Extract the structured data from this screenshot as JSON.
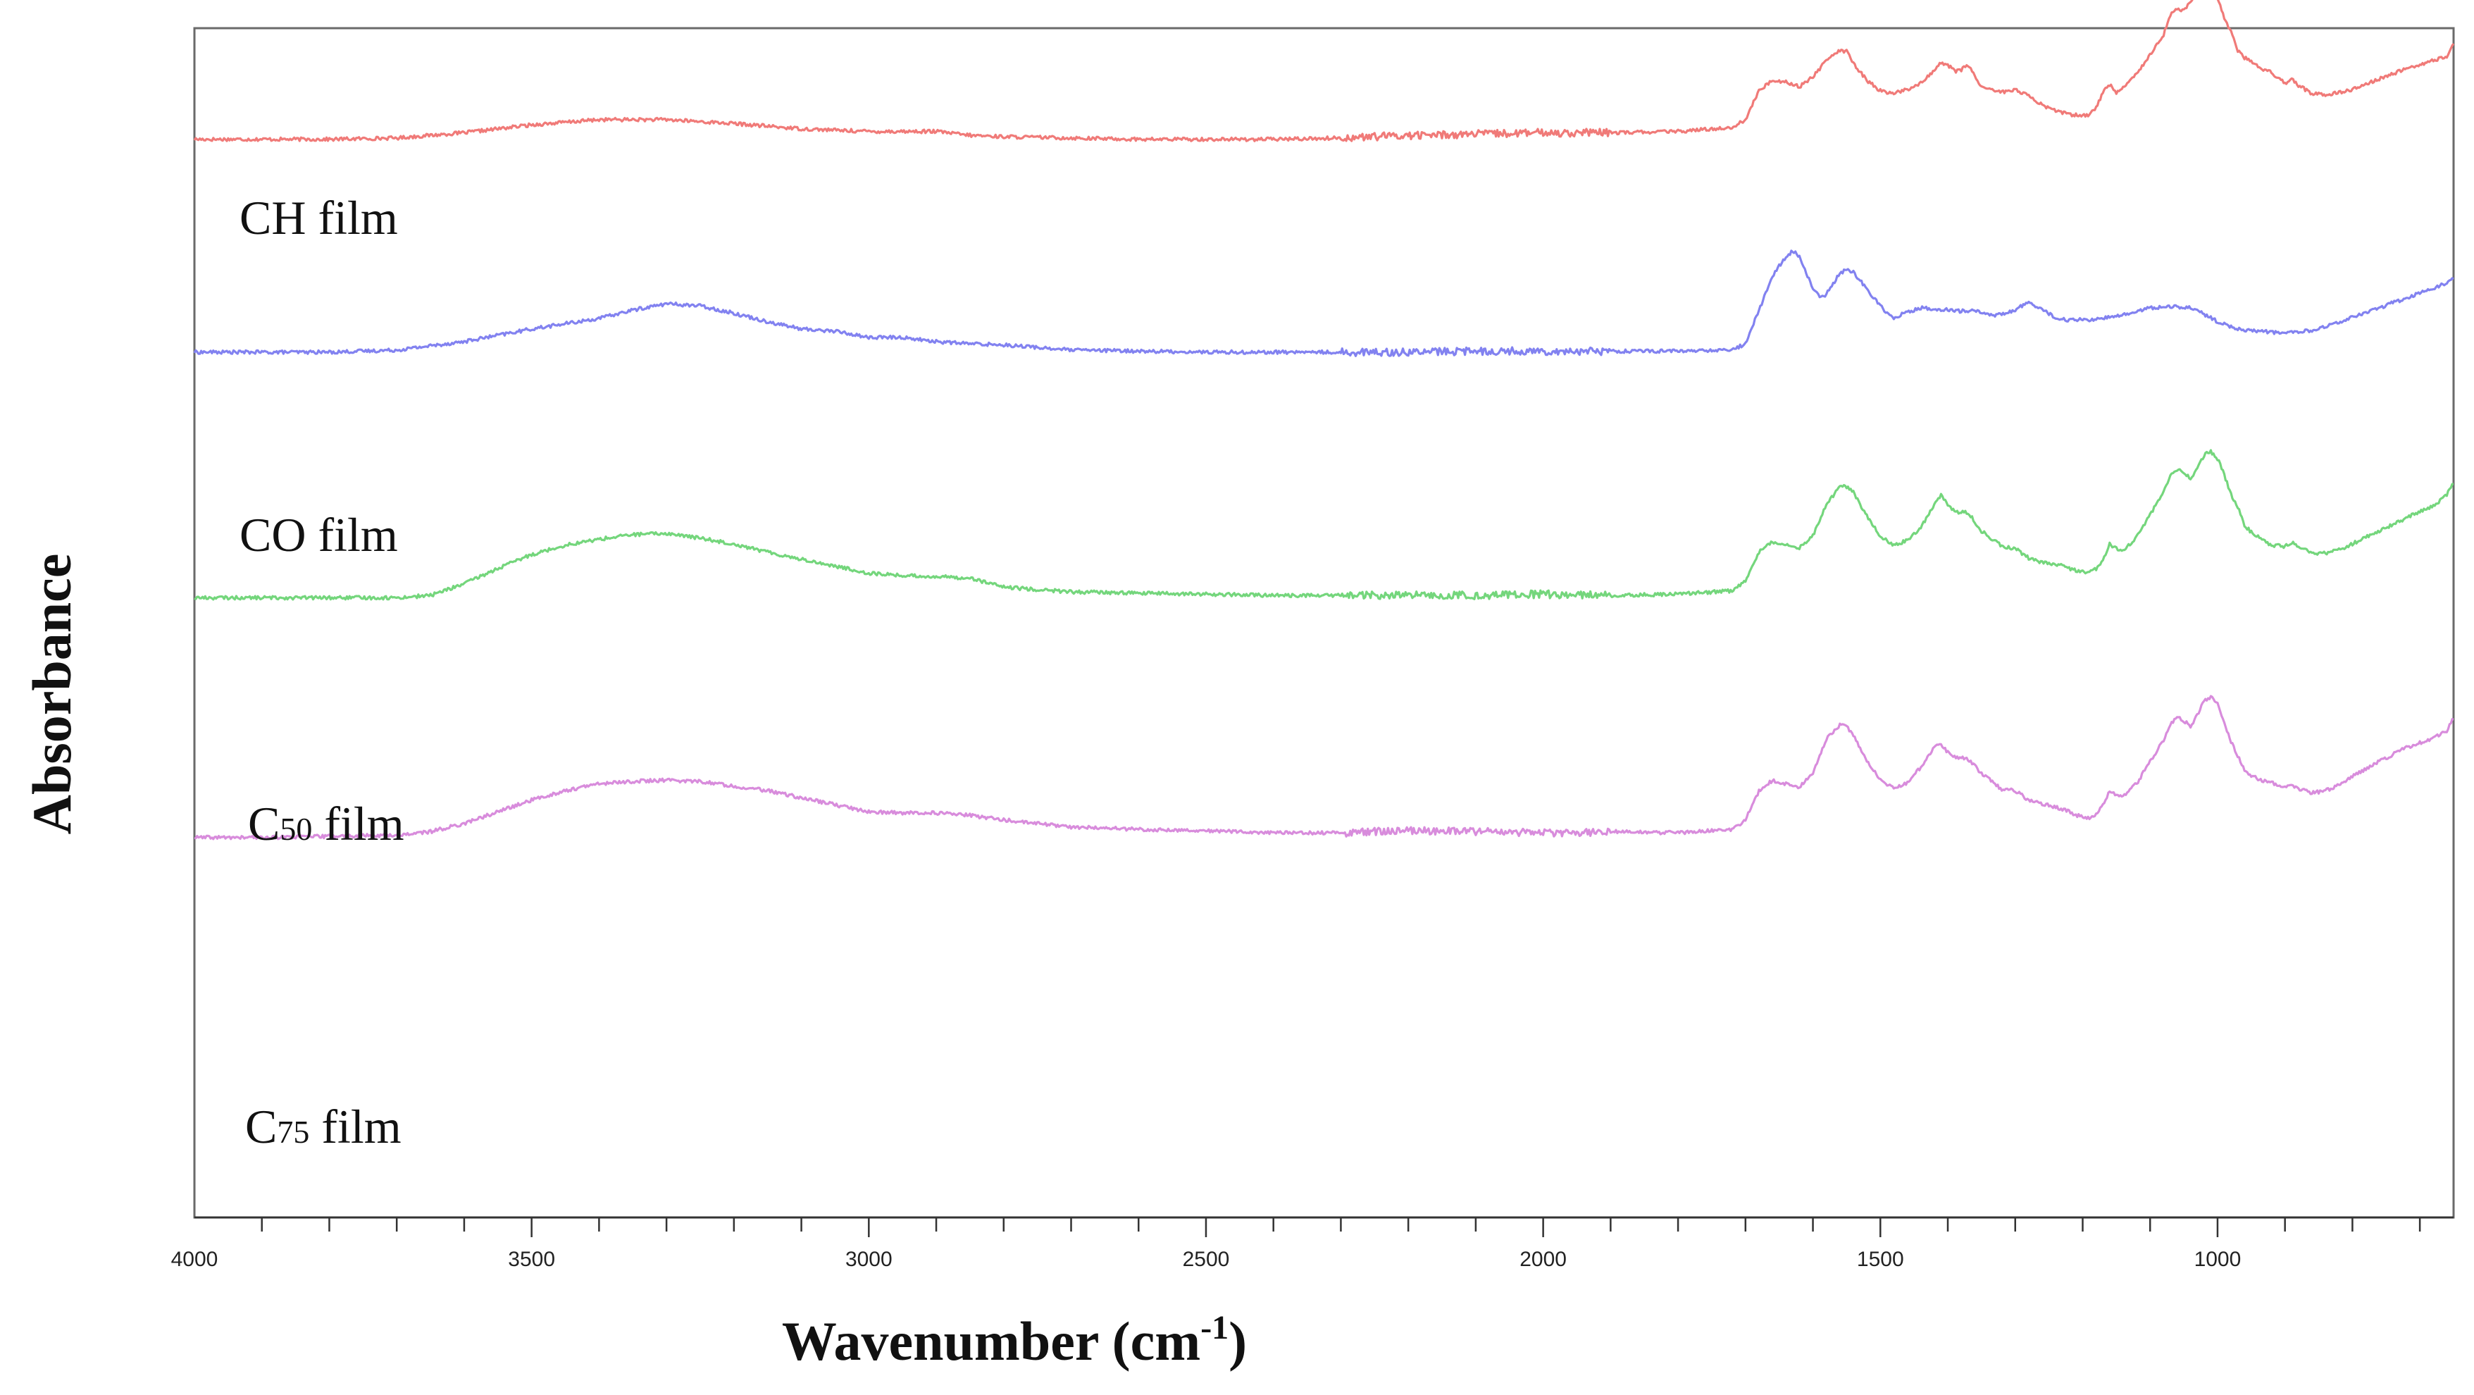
{
  "chart_data": {
    "type": "line",
    "xlabel": "Wavenumber (cm",
    "xlabel_sup": "-1",
    "xlabel_close": ")",
    "ylabel": "Absorbance",
    "xlim": [
      4000,
      650
    ],
    "x_reversed": true,
    "xticks_major": [
      4000,
      3500,
      3000,
      2500,
      2000,
      1500,
      1000
    ],
    "xtick_labels": [
      "4000",
      "3500",
      "3000",
      "2500",
      "2000",
      "1500",
      "1000"
    ],
    "xticks_minor_step": 100,
    "yticks": "none",
    "grid": false,
    "legend": "none",
    "series": [
      {
        "name": "CH film",
        "label_main": "CH film",
        "label_sub": "",
        "label_rest": "",
        "color": "#f07a78",
        "base": 0.905,
        "scale": 0.112,
        "noise": 0.003,
        "x": [
          4000,
          3900,
          3800,
          3700,
          3600,
          3500,
          3400,
          3300,
          3200,
          3100,
          3000,
          2900,
          2850,
          2800,
          2700,
          2600,
          2500,
          2400,
          2300,
          2200,
          2100,
          2000,
          1900,
          1800,
          1720,
          1700,
          1680,
          1660,
          1640,
          1620,
          1600,
          1580,
          1560,
          1550,
          1540,
          1520,
          1500,
          1480,
          1460,
          1440,
          1420,
          1410,
          1400,
          1390,
          1380,
          1370,
          1350,
          1320,
          1300,
          1280,
          1260,
          1240,
          1220,
          1200,
          1190,
          1180,
          1170,
          1160,
          1150,
          1140,
          1120,
          1100,
          1080,
          1070,
          1060,
          1050,
          1040,
          1030,
          1020,
          1010,
          1000,
          990,
          980,
          970,
          960,
          950,
          940,
          920,
          900,
          890,
          880,
          860,
          840,
          820,
          800,
          780,
          760,
          740,
          720,
          700,
          680,
          660,
          650
        ],
        "y": [
          0.0,
          0.0,
          0.0,
          0.01,
          0.05,
          0.11,
          0.15,
          0.15,
          0.12,
          0.08,
          0.06,
          0.06,
          0.03,
          0.02,
          0.01,
          0.0,
          0.0,
          0.0,
          0.01,
          0.03,
          0.04,
          0.05,
          0.05,
          0.06,
          0.09,
          0.15,
          0.37,
          0.45,
          0.44,
          0.4,
          0.48,
          0.6,
          0.68,
          0.67,
          0.58,
          0.45,
          0.37,
          0.35,
          0.38,
          0.43,
          0.53,
          0.58,
          0.57,
          0.52,
          0.53,
          0.57,
          0.4,
          0.36,
          0.38,
          0.33,
          0.26,
          0.22,
          0.19,
          0.18,
          0.19,
          0.24,
          0.36,
          0.42,
          0.36,
          0.39,
          0.5,
          0.65,
          0.8,
          0.95,
          1.0,
          0.98,
          1.05,
          1.13,
          1.17,
          1.15,
          1.08,
          0.93,
          0.82,
          0.68,
          0.62,
          0.6,
          0.55,
          0.51,
          0.43,
          0.46,
          0.41,
          0.35,
          0.34,
          0.36,
          0.38,
          0.42,
          0.46,
          0.5,
          0.54,
          0.57,
          0.6,
          0.63,
          0.73
        ]
      },
      {
        "name": "CO film",
        "label_main": "CO film",
        "label_sub": "",
        "label_rest": "",
        "color": "#8282f0",
        "base": 0.723,
        "scale": 0.09,
        "noise": 0.003,
        "x": [
          4000,
          3900,
          3800,
          3700,
          3600,
          3500,
          3400,
          3350,
          3300,
          3250,
          3200,
          3150,
          3100,
          3050,
          3000,
          2950,
          2900,
          2850,
          2800,
          2700,
          2600,
          2500,
          2400,
          2300,
          2200,
          2100,
          2000,
          1900,
          1800,
          1720,
          1700,
          1680,
          1660,
          1650,
          1640,
          1630,
          1620,
          1600,
          1590,
          1580,
          1570,
          1560,
          1550,
          1540,
          1530,
          1510,
          1490,
          1480,
          1460,
          1440,
          1420,
          1400,
          1380,
          1360,
          1340,
          1320,
          1300,
          1280,
          1260,
          1240,
          1220,
          1200,
          1180,
          1160,
          1140,
          1120,
          1100,
          1080,
          1060,
          1040,
          1020,
          1000,
          980,
          960,
          940,
          920,
          900,
          880,
          860,
          840,
          820,
          800,
          780,
          760,
          740,
          720,
          700,
          680,
          660,
          650
        ],
        "y": [
          0.0,
          0.0,
          0.0,
          0.02,
          0.1,
          0.22,
          0.32,
          0.4,
          0.46,
          0.44,
          0.37,
          0.29,
          0.22,
          0.2,
          0.14,
          0.14,
          0.1,
          0.08,
          0.07,
          0.02,
          0.01,
          0.0,
          0.0,
          0.0,
          0.0,
          0.01,
          0.01,
          0.01,
          0.01,
          0.02,
          0.08,
          0.4,
          0.72,
          0.82,
          0.9,
          0.96,
          0.91,
          0.6,
          0.52,
          0.55,
          0.65,
          0.75,
          0.78,
          0.76,
          0.68,
          0.52,
          0.37,
          0.33,
          0.38,
          0.42,
          0.41,
          0.4,
          0.39,
          0.4,
          0.35,
          0.36,
          0.4,
          0.48,
          0.4,
          0.33,
          0.3,
          0.31,
          0.31,
          0.33,
          0.35,
          0.39,
          0.42,
          0.43,
          0.43,
          0.42,
          0.36,
          0.29,
          0.24,
          0.21,
          0.2,
          0.19,
          0.18,
          0.19,
          0.21,
          0.24,
          0.28,
          0.33,
          0.38,
          0.42,
          0.47,
          0.51,
          0.56,
          0.61,
          0.66,
          0.7
        ]
      },
      {
        "name": "C50 film",
        "label_main": "C",
        "label_sub": "50",
        "label_rest": " film",
        "color": "#74d67c",
        "base": 0.513,
        "scale": 0.1,
        "noise": 0.003,
        "x": [
          4000,
          3900,
          3800,
          3700,
          3650,
          3600,
          3550,
          3500,
          3450,
          3400,
          3350,
          3300,
          3250,
          3200,
          3150,
          3100,
          3050,
          3000,
          2950,
          2900,
          2850,
          2800,
          2700,
          2600,
          2500,
          2400,
          2300,
          2200,
          2100,
          2000,
          1900,
          1800,
          1720,
          1700,
          1680,
          1660,
          1650,
          1640,
          1620,
          1600,
          1580,
          1560,
          1550,
          1540,
          1520,
          1500,
          1480,
          1460,
          1440,
          1420,
          1410,
          1400,
          1390,
          1380,
          1370,
          1350,
          1320,
          1300,
          1280,
          1260,
          1240,
          1220,
          1200,
          1190,
          1180,
          1170,
          1160,
          1150,
          1140,
          1120,
          1100,
          1080,
          1070,
          1060,
          1050,
          1040,
          1030,
          1020,
          1010,
          1000,
          990,
          980,
          970,
          960,
          950,
          940,
          920,
          900,
          890,
          880,
          860,
          840,
          820,
          800,
          780,
          760,
          740,
          720,
          700,
          680,
          660,
          650
        ],
        "y": [
          0.0,
          0.0,
          0.0,
          0.0,
          0.02,
          0.12,
          0.25,
          0.37,
          0.45,
          0.5,
          0.54,
          0.55,
          0.51,
          0.46,
          0.39,
          0.33,
          0.27,
          0.21,
          0.19,
          0.18,
          0.17,
          0.09,
          0.05,
          0.04,
          0.03,
          0.02,
          0.02,
          0.02,
          0.02,
          0.03,
          0.02,
          0.03,
          0.06,
          0.15,
          0.39,
          0.48,
          0.47,
          0.46,
          0.43,
          0.53,
          0.8,
          0.95,
          0.95,
          0.9,
          0.7,
          0.53,
          0.45,
          0.49,
          0.6,
          0.8,
          0.88,
          0.8,
          0.74,
          0.73,
          0.73,
          0.57,
          0.44,
          0.42,
          0.34,
          0.3,
          0.29,
          0.25,
          0.22,
          0.22,
          0.25,
          0.32,
          0.46,
          0.42,
          0.4,
          0.52,
          0.71,
          0.9,
          1.05,
          1.1,
          1.06,
          1.02,
          1.1,
          1.22,
          1.25,
          1.19,
          1.05,
          0.88,
          0.78,
          0.62,
          0.56,
          0.52,
          0.45,
          0.44,
          0.47,
          0.44,
          0.38,
          0.38,
          0.41,
          0.46,
          0.52,
          0.57,
          0.63,
          0.68,
          0.74,
          0.78,
          0.88,
          0.98
        ]
      },
      {
        "name": "C75 film",
        "label_main": "C",
        "label_sub": "75",
        "label_rest": " film",
        "color": "#d88cdc",
        "base": 0.308,
        "scale": 0.1,
        "noise": 0.003,
        "x": [
          4000,
          3900,
          3800,
          3700,
          3650,
          3600,
          3550,
          3500,
          3450,
          3400,
          3350,
          3300,
          3250,
          3200,
          3150,
          3100,
          3050,
          3000,
          2950,
          2900,
          2850,
          2800,
          2700,
          2600,
          2500,
          2400,
          2300,
          2200,
          2100,
          2000,
          1900,
          1800,
          1720,
          1700,
          1680,
          1660,
          1650,
          1640,
          1620,
          1600,
          1580,
          1560,
          1550,
          1540,
          1520,
          1500,
          1480,
          1460,
          1440,
          1420,
          1410,
          1400,
          1390,
          1380,
          1370,
          1350,
          1320,
          1300,
          1280,
          1260,
          1240,
          1220,
          1200,
          1190,
          1180,
          1170,
          1160,
          1150,
          1140,
          1120,
          1100,
          1080,
          1070,
          1060,
          1050,
          1040,
          1030,
          1020,
          1010,
          1000,
          990,
          980,
          970,
          960,
          950,
          940,
          920,
          900,
          890,
          880,
          860,
          840,
          820,
          800,
          780,
          760,
          740,
          720,
          700,
          680,
          660,
          650
        ],
        "y": [
          0.0,
          0.0,
          0.01,
          0.02,
          0.05,
          0.12,
          0.22,
          0.32,
          0.4,
          0.46,
          0.48,
          0.49,
          0.48,
          0.44,
          0.4,
          0.34,
          0.28,
          0.22,
          0.21,
          0.21,
          0.19,
          0.15,
          0.09,
          0.07,
          0.06,
          0.04,
          0.04,
          0.06,
          0.05,
          0.04,
          0.05,
          0.04,
          0.07,
          0.15,
          0.4,
          0.49,
          0.47,
          0.46,
          0.43,
          0.55,
          0.84,
          0.96,
          0.95,
          0.88,
          0.66,
          0.49,
          0.42,
          0.47,
          0.6,
          0.77,
          0.8,
          0.73,
          0.69,
          0.68,
          0.67,
          0.55,
          0.41,
          0.4,
          0.32,
          0.29,
          0.26,
          0.22,
          0.17,
          0.17,
          0.2,
          0.28,
          0.4,
          0.37,
          0.35,
          0.46,
          0.65,
          0.83,
          0.96,
          1.03,
          1.0,
          0.95,
          1.05,
          1.17,
          1.2,
          1.14,
          0.98,
          0.82,
          0.7,
          0.58,
          0.53,
          0.5,
          0.47,
          0.43,
          0.45,
          0.42,
          0.38,
          0.4,
          0.45,
          0.52,
          0.59,
          0.65,
          0.71,
          0.77,
          0.81,
          0.85,
          0.91,
          1.02
        ]
      }
    ]
  }
}
